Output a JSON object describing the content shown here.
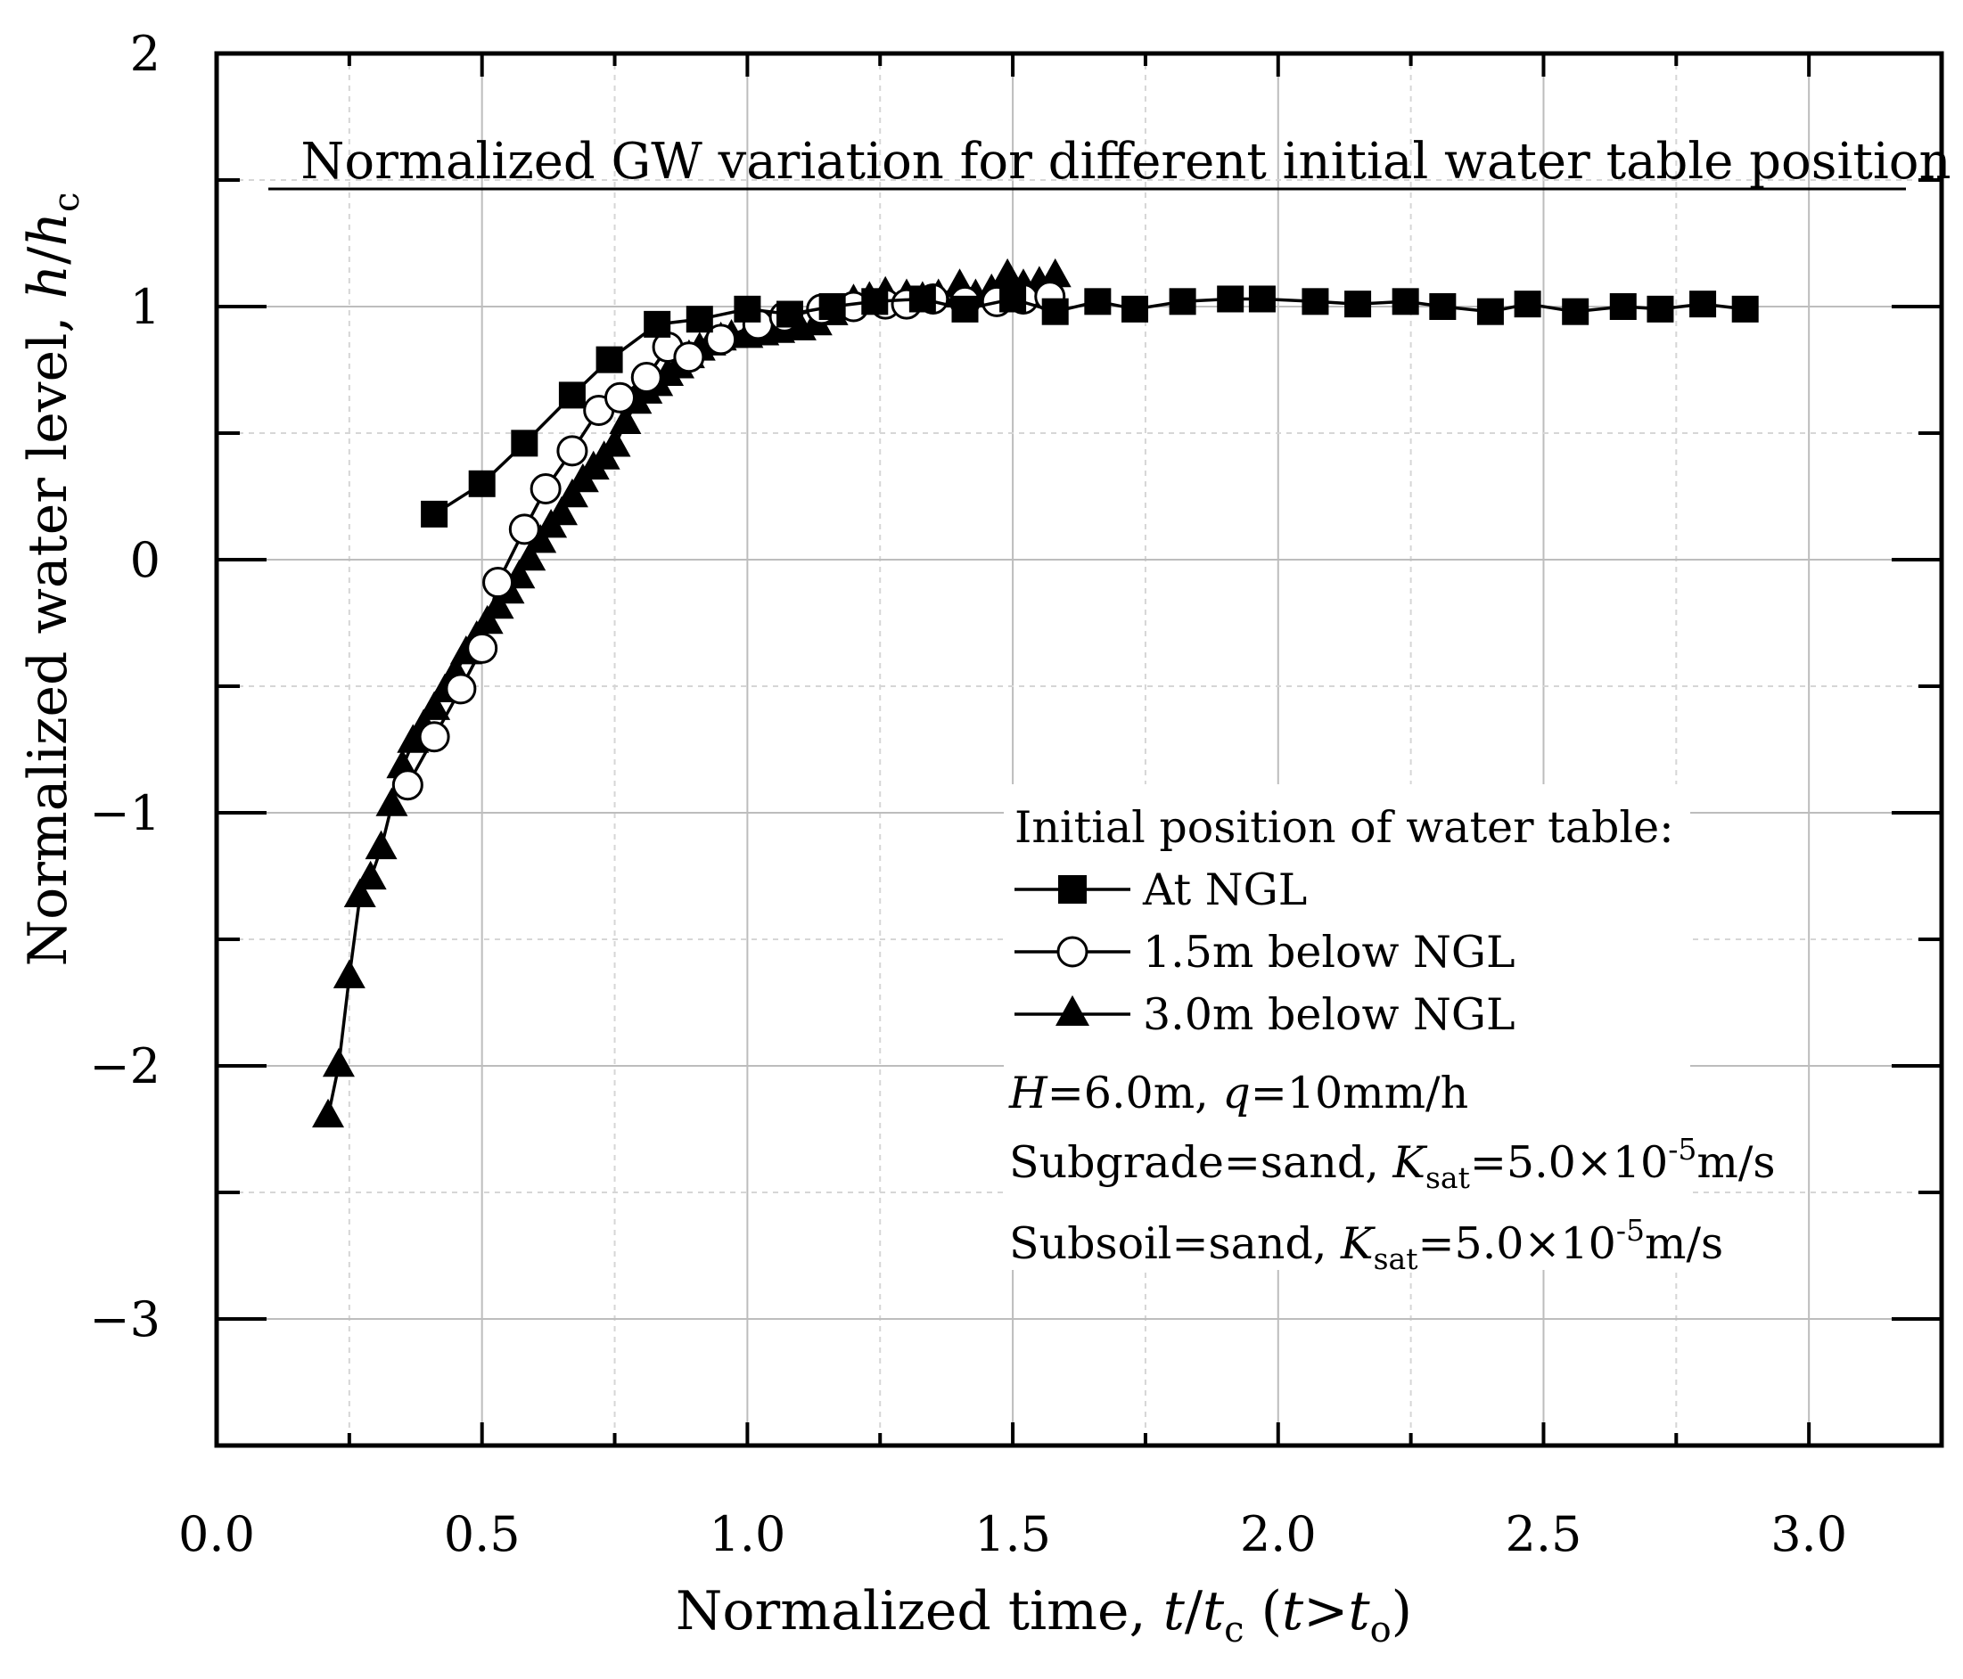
{
  "chart_data": {
    "type": "line",
    "title": "Normalized GW variation for different initial water table position",
    "xlabel": "Normalized time, t/t_c (t>t_o)",
    "ylabel": "Normalized water level, h/h_c",
    "xlabel_parts": {
      "pre": "Normalized time, ",
      "t1": "t",
      "slash": "/",
      "t2": "t",
      "sub1": "c",
      "mid": " (",
      "t3": "t",
      "gt": ">",
      "t4": "t",
      "sub2": "o",
      "post": ")"
    },
    "ylabel_parts": {
      "pre": "Normalized water level, ",
      "h1": "h",
      "slash": "/",
      "h2": "h",
      "sub": "c"
    },
    "xlim": [
      0.0,
      3.25
    ],
    "ylim": [
      -3.5,
      2.0
    ],
    "grid": true,
    "x_ticks": [
      "0.0",
      "0.5",
      "1.0",
      "1.5",
      "2.0",
      "2.5",
      "3.0"
    ],
    "x_tick_values": [
      0.0,
      0.5,
      1.0,
      1.5,
      2.0,
      2.5,
      3.0
    ],
    "y_ticks": [
      "2",
      "1",
      "0",
      "−1",
      "−2",
      "−3"
    ],
    "y_tick_values": [
      2,
      1,
      0,
      -1,
      -2,
      -3
    ],
    "legend": {
      "position": "lower-right",
      "title": "Initial position of water table:",
      "entries": [
        "At NGL",
        "1.5m below NGL",
        "3.0m below NGL"
      ]
    },
    "annotations": {
      "line1": {
        "H": "H",
        "eq1": "=6.0m, ",
        "q": "q",
        "eq2": "=10mm/h"
      },
      "line2": {
        "pre": "Subgrade=sand, ",
        "K": "K",
        "sub": "sat",
        "eq": "=5.0×10",
        "sup": "-5",
        "unit": "m/s"
      },
      "line3": {
        "pre": "Subsoil=sand, ",
        "K": "K",
        "sub": "sat",
        "eq": "=5.0×10",
        "sup": "-5",
        "unit": "m/s"
      }
    },
    "series": [
      {
        "name": "At NGL",
        "marker": "square-filled",
        "x": [
          0.41,
          0.5,
          0.58,
          0.67,
          0.74,
          0.83,
          0.91,
          1.0,
          1.08,
          1.16,
          1.24,
          1.33,
          1.41,
          1.5,
          1.58,
          1.66,
          1.73,
          1.82,
          1.91,
          1.97,
          2.07,
          2.15,
          2.24,
          2.31,
          2.4,
          2.47,
          2.56,
          2.65,
          2.72,
          2.8,
          2.88
        ],
        "y": [
          0.18,
          0.3,
          0.46,
          0.65,
          0.79,
          0.93,
          0.95,
          0.99,
          0.97,
          1.0,
          1.02,
          1.03,
          0.99,
          1.03,
          0.98,
          1.02,
          0.99,
          1.02,
          1.03,
          1.03,
          1.02,
          1.01,
          1.02,
          1.0,
          0.98,
          1.01,
          0.98,
          1.0,
          0.99,
          1.01,
          0.99
        ]
      },
      {
        "name": "1.5m below NGL",
        "marker": "circle-open",
        "x": [
          0.36,
          0.41,
          0.46,
          0.5,
          0.53,
          0.58,
          0.62,
          0.67,
          0.72,
          0.76,
          0.81,
          0.85,
          0.89,
          0.95,
          1.02,
          1.07,
          1.14,
          1.2,
          1.26,
          1.3,
          1.35,
          1.41,
          1.47,
          1.52,
          1.57
        ],
        "y": [
          -0.89,
          -0.7,
          -0.51,
          -0.35,
          -0.09,
          0.12,
          0.28,
          0.43,
          0.59,
          0.64,
          0.72,
          0.84,
          0.8,
          0.87,
          0.93,
          0.96,
          0.99,
          1.0,
          1.01,
          1.01,
          1.03,
          1.02,
          1.02,
          1.03,
          1.04
        ]
      },
      {
        "name": "3.0m below NGL",
        "marker": "triangle-filled",
        "x": [
          0.21,
          0.23,
          0.25,
          0.27,
          0.29,
          0.31,
          0.33,
          0.35,
          0.37,
          0.39,
          0.41,
          0.43,
          0.45,
          0.47,
          0.49,
          0.51,
          0.53,
          0.55,
          0.57,
          0.59,
          0.61,
          0.63,
          0.65,
          0.67,
          0.69,
          0.71,
          0.73,
          0.75,
          0.77,
          0.79,
          0.81,
          0.83,
          0.85,
          0.87,
          0.89,
          0.91,
          0.93,
          0.95,
          0.97,
          1.0,
          1.03,
          1.06,
          1.1,
          1.13,
          1.16,
          1.2,
          1.23,
          1.26,
          1.3,
          1.33,
          1.36,
          1.4,
          1.43,
          1.46,
          1.49,
          1.52,
          1.55,
          1.58
        ],
        "y": [
          -2.2,
          -2.0,
          -1.65,
          -1.33,
          -1.26,
          -1.14,
          -0.97,
          -0.82,
          -0.72,
          -0.66,
          -0.59,
          -0.52,
          -0.45,
          -0.37,
          -0.31,
          -0.25,
          -0.19,
          -0.13,
          -0.07,
          0.0,
          0.07,
          0.13,
          0.18,
          0.25,
          0.31,
          0.36,
          0.4,
          0.45,
          0.54,
          0.62,
          0.66,
          0.69,
          0.73,
          0.76,
          0.8,
          0.83,
          0.85,
          0.87,
          0.88,
          0.88,
          0.89,
          0.9,
          0.91,
          0.93,
          0.97,
          1.02,
          1.03,
          1.05,
          1.04,
          1.03,
          1.04,
          1.08,
          1.04,
          1.06,
          1.12,
          1.08,
          1.09,
          1.12
        ]
      }
    ]
  }
}
